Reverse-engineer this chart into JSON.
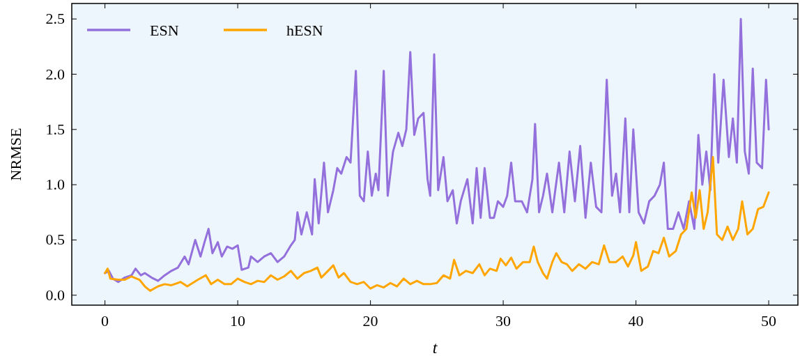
{
  "chart_data": {
    "type": "line",
    "xlabel": "t",
    "ylabel": "NRMSE",
    "xlim": [
      -2.5,
      52.2
    ],
    "ylim": [
      -0.09,
      2.64
    ],
    "xticks": [
      0,
      10,
      20,
      30,
      40,
      50
    ],
    "yticks": [
      {
        "value": 0,
        "label": "0.0"
      },
      {
        "value": 0.5,
        "label": "0.5"
      },
      {
        "value": 1,
        "label": "1.0"
      },
      {
        "value": 1.5,
        "label": "1.5"
      },
      {
        "value": 2,
        "label": "2.0"
      },
      {
        "value": 2.5,
        "label": "2.5"
      }
    ],
    "legend": "top left",
    "grid": false,
    "line_style": "solid",
    "marker": "none",
    "series": [
      {
        "name": "ESN",
        "color": "#9370db",
        "x": [
          0,
          0.3,
          0.6,
          1,
          1.5,
          2,
          2.3,
          2.7,
          3,
          3.5,
          4,
          4.5,
          5,
          5.5,
          6,
          6.3,
          6.8,
          7.2,
          7.5,
          7.8,
          8.1,
          8.5,
          8.8,
          9.2,
          9.6,
          10,
          10.3,
          10.8,
          11,
          11.5,
          12,
          12.5,
          13,
          13.5,
          14,
          14.3,
          14.5,
          14.8,
          15.2,
          15.6,
          15.8,
          16.1,
          16.5,
          16.8,
          17.2,
          17.5,
          17.8,
          18.2,
          18.5,
          18.9,
          19.2,
          19.5,
          19.8,
          20.1,
          20.4,
          20.6,
          21,
          21.3,
          21.7,
          22.1,
          22.4,
          22.7,
          23,
          23.3,
          23.6,
          24,
          24.3,
          24.5,
          24.8,
          25.1,
          25.5,
          25.8,
          26.2,
          26.5,
          26.8,
          27.3,
          27.7,
          28,
          28.3,
          28.6,
          29,
          29.3,
          29.6,
          30,
          30.3,
          30.6,
          30.9,
          31.4,
          31.8,
          32.2,
          32.4,
          32.7,
          33,
          33.3,
          33.7,
          34.2,
          34.6,
          35,
          35.4,
          35.8,
          36.2,
          36.6,
          37,
          37.4,
          37.8,
          38.2,
          38.5,
          38.8,
          39.2,
          39.5,
          39.8,
          40.2,
          40.6,
          41,
          41.4,
          41.8,
          42.1,
          42.4,
          42.8,
          43.2,
          43.6,
          44,
          44.4,
          44.7,
          45,
          45.3,
          45.6,
          45.9,
          46.2,
          46.6,
          47,
          47.3,
          47.6,
          47.9,
          48.2,
          48.5,
          48.8,
          49.1,
          49.5,
          49.8,
          50
        ],
        "values": [
          0.2,
          0.22,
          0.15,
          0.12,
          0.16,
          0.18,
          0.24,
          0.18,
          0.2,
          0.16,
          0.13,
          0.18,
          0.22,
          0.25,
          0.35,
          0.28,
          0.5,
          0.35,
          0.48,
          0.6,
          0.38,
          0.48,
          0.35,
          0.44,
          0.42,
          0.45,
          0.23,
          0.25,
          0.35,
          0.3,
          0.35,
          0.38,
          0.3,
          0.35,
          0.45,
          0.5,
          0.75,
          0.55,
          0.75,
          0.55,
          1.05,
          0.65,
          1.2,
          0.75,
          0.95,
          1.15,
          1.1,
          1.25,
          1.2,
          2.03,
          0.9,
          0.85,
          1.3,
          0.9,
          1.1,
          0.95,
          2.03,
          0.9,
          1.3,
          1.47,
          1.35,
          1.5,
          2.2,
          1.45,
          1.6,
          1.65,
          1.05,
          0.9,
          2.18,
          0.95,
          1.25,
          0.85,
          0.95,
          0.65,
          0.85,
          1.05,
          0.65,
          1.15,
          0.7,
          1.15,
          0.7,
          0.7,
          0.85,
          0.8,
          0.9,
          1.2,
          0.85,
          0.85,
          0.75,
          1.05,
          1.55,
          0.75,
          0.9,
          1.1,
          0.75,
          1.2,
          0.75,
          1.3,
          0.85,
          1.35,
          0.7,
          1.2,
          0.8,
          0.75,
          1.95,
          0.9,
          1.1,
          0.75,
          1.6,
          0.75,
          1.5,
          0.75,
          0.65,
          0.85,
          0.9,
          1.0,
          1.2,
          0.6,
          0.6,
          0.75,
          0.6,
          0.85,
          0.6,
          1.45,
          1.0,
          1.3,
          0.95,
          2.0,
          1.2,
          1.95,
          1.25,
          1.6,
          1.2,
          2.5,
          1.3,
          1.1,
          2.05,
          1.2,
          1.15,
          1.95,
          1.5
        ]
      },
      {
        "name": "hESN",
        "color": "#ffa500",
        "x": [
          0,
          0.2,
          0.4,
          1,
          1.5,
          2,
          2.6,
          3,
          3.4,
          4,
          4.5,
          5,
          5.7,
          6.2,
          7,
          7.6,
          8,
          8.5,
          9,
          9.5,
          10,
          10.5,
          11,
          11.5,
          12,
          12.5,
          13,
          13.5,
          14,
          14.5,
          15,
          15.5,
          16,
          16.3,
          16.8,
          17.2,
          17.6,
          18,
          18.5,
          19,
          19.5,
          20,
          20.5,
          21,
          21.5,
          22,
          22.5,
          23,
          23.5,
          24,
          24.5,
          25,
          25.5,
          26,
          26.3,
          26.7,
          27.2,
          27.7,
          28.2,
          28.6,
          29,
          29.5,
          29.8,
          30.2,
          30.6,
          31,
          31.5,
          32,
          32.3,
          32.6,
          33,
          33.3,
          33.7,
          34,
          34.4,
          34.8,
          35.2,
          35.7,
          36.2,
          36.7,
          37.2,
          37.6,
          38,
          38.5,
          39,
          39.4,
          39.8,
          40,
          40.4,
          40.9,
          41.3,
          41.7,
          42.1,
          42.5,
          43,
          43.4,
          43.8,
          44.2,
          44.5,
          44.8,
          45.1,
          45.4,
          45.8,
          46.1,
          46.5,
          46.9,
          47.3,
          47.7,
          48,
          48.4,
          48.8,
          49.2,
          49.6,
          50
        ],
        "values": [
          0.2,
          0.24,
          0.15,
          0.14,
          0.14,
          0.17,
          0.14,
          0.08,
          0.04,
          0.08,
          0.1,
          0.09,
          0.12,
          0.08,
          0.14,
          0.18,
          0.1,
          0.14,
          0.1,
          0.1,
          0.15,
          0.12,
          0.1,
          0.13,
          0.12,
          0.18,
          0.14,
          0.17,
          0.22,
          0.15,
          0.2,
          0.22,
          0.25,
          0.16,
          0.22,
          0.27,
          0.16,
          0.2,
          0.12,
          0.1,
          0.12,
          0.06,
          0.09,
          0.07,
          0.11,
          0.08,
          0.15,
          0.1,
          0.13,
          0.1,
          0.1,
          0.11,
          0.18,
          0.15,
          0.32,
          0.18,
          0.22,
          0.2,
          0.28,
          0.18,
          0.24,
          0.22,
          0.33,
          0.27,
          0.34,
          0.24,
          0.3,
          0.3,
          0.44,
          0.3,
          0.2,
          0.15,
          0.3,
          0.38,
          0.3,
          0.28,
          0.22,
          0.28,
          0.24,
          0.3,
          0.28,
          0.45,
          0.3,
          0.3,
          0.35,
          0.26,
          0.36,
          0.48,
          0.22,
          0.26,
          0.4,
          0.38,
          0.52,
          0.35,
          0.4,
          0.55,
          0.6,
          0.93,
          0.7,
          0.95,
          0.6,
          0.75,
          1.25,
          0.55,
          0.5,
          0.62,
          0.5,
          0.6,
          0.85,
          0.55,
          0.6,
          0.78,
          0.8,
          0.93
        ]
      }
    ]
  }
}
